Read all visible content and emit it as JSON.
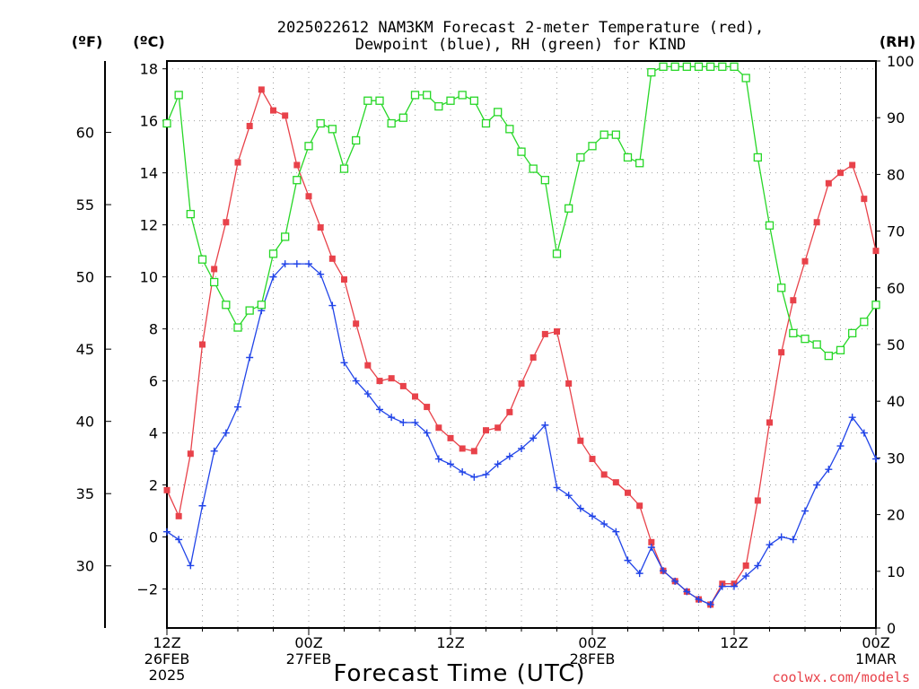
{
  "title": {
    "line1": "2025022612 NAM3KM Forecast 2-meter Temperature (red),",
    "line2": "Dewpoint (blue), RH (green) for KIND"
  },
  "units": {
    "fahrenheit": "(ºF)",
    "celsius": "(ºC)",
    "rh": "(RH)"
  },
  "xlabel": "Forecast Time (UTC)",
  "credit": "coolwx.com/models",
  "chart_data": {
    "type": "line",
    "x_unit": "forecast hour",
    "x": [
      0,
      1,
      2,
      3,
      4,
      5,
      6,
      7,
      8,
      9,
      10,
      11,
      12,
      13,
      14,
      15,
      16,
      17,
      18,
      19,
      20,
      21,
      22,
      23,
      24,
      25,
      26,
      27,
      28,
      29,
      30,
      31,
      32,
      33,
      34,
      35,
      36,
      37,
      38,
      39,
      40,
      41,
      42,
      43,
      44,
      45,
      46,
      47,
      48,
      49,
      50,
      51,
      52,
      53,
      54,
      55,
      56,
      57,
      58,
      59,
      60
    ],
    "xlim": [
      0,
      60
    ],
    "ylim_celsius": [
      -3.5,
      18.3
    ],
    "ylim_rh": [
      0,
      100
    ],
    "celsius_ticks": [
      -2,
      0,
      2,
      4,
      6,
      8,
      10,
      12,
      14,
      16,
      18
    ],
    "fahrenheit_ticks": [
      30,
      35,
      40,
      45,
      50,
      55,
      60
    ],
    "rh_ticks": [
      0,
      10,
      20,
      30,
      40,
      50,
      60,
      70,
      80,
      90,
      100
    ],
    "x_ticks": [
      {
        "x": 0,
        "labels": [
          "12Z",
          "26FEB",
          "2025"
        ]
      },
      {
        "x": 12,
        "labels": [
          "00Z",
          "27FEB"
        ]
      },
      {
        "x": 24,
        "labels": [
          "12Z"
        ]
      },
      {
        "x": 36,
        "labels": [
          "00Z",
          "28FEB"
        ]
      },
      {
        "x": 48,
        "labels": [
          "12Z"
        ]
      },
      {
        "x": 60,
        "labels": [
          "00Z",
          "1MAR"
        ]
      }
    ],
    "series": [
      {
        "axis": "celsius",
        "color": "#e8424a",
        "marker": "filled-square",
        "values": [
          1.8,
          0.8,
          3.2,
          7.4,
          10.3,
          12.1,
          14.4,
          15.8,
          17.2,
          16.4,
          16.2,
          14.3,
          13.1,
          11.9,
          10.7,
          9.9,
          8.2,
          6.6,
          6.0,
          6.1,
          5.8,
          5.4,
          5.0,
          4.2,
          3.8,
          3.4,
          3.3,
          4.1,
          4.2,
          4.8,
          5.9,
          6.9,
          7.8,
          7.9,
          5.9,
          3.7,
          3.0,
          2.4,
          2.1,
          1.7,
          1.2,
          -0.2,
          -1.3,
          -1.7,
          -2.1,
          -2.4,
          -2.6,
          -1.8,
          -1.8,
          -1.1,
          1.4,
          4.4,
          7.1,
          9.1,
          10.6,
          12.1,
          13.6,
          14.0,
          14.3,
          13.0,
          11.0
        ]
      },
      {
        "axis": "celsius",
        "color": "#2144e8",
        "marker": "plus",
        "values": [
          0.2,
          -0.1,
          -1.1,
          1.2,
          3.3,
          4.0,
          5.0,
          6.9,
          8.7,
          10.0,
          10.5,
          10.5,
          10.5,
          10.1,
          8.9,
          6.7,
          6.0,
          5.5,
          4.9,
          4.6,
          4.4,
          4.4,
          4.0,
          3.0,
          2.8,
          2.5,
          2.3,
          2.4,
          2.8,
          3.1,
          3.4,
          3.8,
          4.3,
          1.9,
          1.6,
          1.1,
          0.8,
          0.5,
          0.2,
          -0.9,
          -1.4,
          -0.4,
          -1.3,
          -1.7,
          -2.1,
          -2.4,
          -2.6,
          -1.9,
          -1.9,
          -1.5,
          -1.1,
          -0.3,
          0.0,
          -0.1,
          1.0,
          2.0,
          2.6,
          3.5,
          4.6,
          4.0,
          3.0
        ]
      },
      {
        "axis": "rh",
        "color": "#27d727",
        "marker": "open-square",
        "values": [
          89,
          94,
          73,
          65,
          61,
          57,
          53,
          56,
          57,
          66,
          69,
          79,
          85,
          89,
          88,
          81,
          86,
          93,
          93,
          89,
          90,
          94,
          94,
          92,
          93,
          94,
          93,
          89,
          91,
          88,
          84,
          81,
          79,
          66,
          74,
          83,
          85,
          87,
          87,
          83,
          82,
          98,
          99,
          99,
          99,
          99,
          99,
          99,
          99,
          97,
          83,
          71,
          60,
          52,
          51,
          50,
          48,
          49,
          52,
          54,
          57
        ]
      }
    ]
  }
}
